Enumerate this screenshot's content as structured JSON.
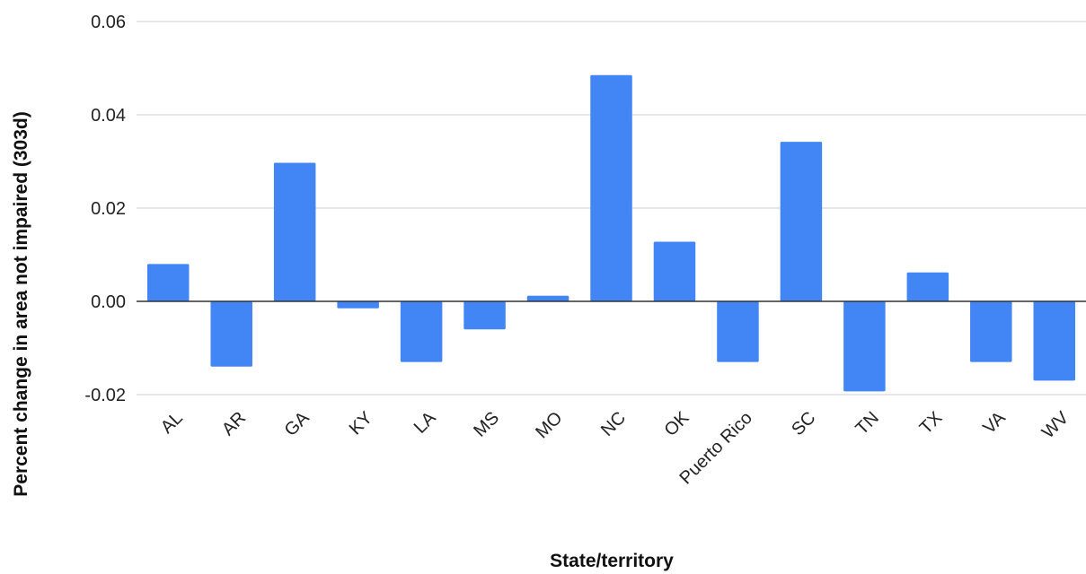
{
  "chart_data": {
    "type": "bar",
    "title": "",
    "xlabel": "State/territory",
    "ylabel": "Percent change in area not impaired (303d)",
    "categories": [
      "AL",
      "AR",
      "GA",
      "KY",
      "LA",
      "MS",
      "MO",
      "NC",
      "OK",
      "Puerto Rico",
      "SC",
      "TN",
      "TX",
      "VA",
      "WV"
    ],
    "series": [
      {
        "values": [
          0.008,
          -0.014,
          0.0297,
          -0.0015,
          -0.013,
          -0.006,
          0.0012,
          0.0485,
          0.0128,
          -0.013,
          0.0342,
          -0.0193,
          0.0062,
          -0.013,
          -0.017
        ]
      }
    ],
    "ylim": [
      -0.02,
      0.06
    ],
    "yticks": [
      -0.02,
      0.0,
      0.02,
      0.04,
      0.06
    ],
    "ytick_labels": [
      "-0.02",
      "0.00",
      "0.02",
      "0.04",
      "0.06"
    ],
    "grid": true,
    "legend": "none",
    "colors": {
      "bar": "#4285f4",
      "grid": "#cccccc",
      "zero_line": "#333333"
    }
  }
}
